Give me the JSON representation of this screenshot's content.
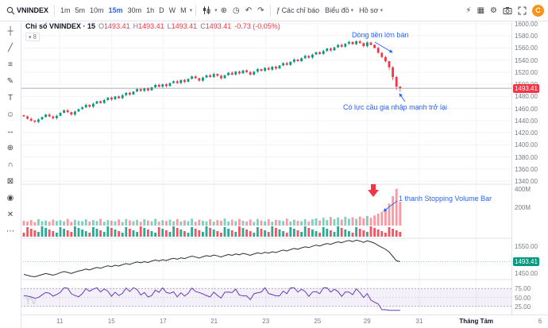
{
  "toolbar": {
    "symbol": "VNINDEX",
    "timeframes": [
      "1m",
      "5m",
      "10m",
      "15m",
      "30m",
      "1h",
      "D",
      "W",
      "M"
    ],
    "active_timeframe": "15m",
    "indicators_label": "Các chỉ báo",
    "layout_label": "Biểu đồ",
    "profile_label": "Hồ sơ",
    "logo_letter": "C"
  },
  "icons": {
    "chevron_down": "▾",
    "compare": "⊕",
    "alert_clock": "◷",
    "undo": "↶",
    "redo": "↷",
    "fx": "ƒ",
    "lightning": "⚡",
    "layout_grid": "▦",
    "gear": "⚙"
  },
  "sidebar": {
    "tools": [
      {
        "name": "crosshair",
        "glyph": "┼"
      },
      {
        "name": "trendline",
        "glyph": "╱"
      },
      {
        "name": "fib-retracement",
        "glyph": "≡"
      },
      {
        "name": "brush",
        "glyph": "✎"
      },
      {
        "name": "text-tool",
        "glyph": "T"
      },
      {
        "name": "emoji",
        "glyph": "☺"
      },
      {
        "name": "measure",
        "glyph": "↔"
      },
      {
        "name": "zoom",
        "glyph": "⊕"
      },
      {
        "name": "magnet",
        "glyph": "∩"
      },
      {
        "name": "lock",
        "glyph": "⊠"
      },
      {
        "name": "eye",
        "glyph": "◉"
      },
      {
        "name": "trash",
        "glyph": "✕"
      },
      {
        "name": "more",
        "glyph": "⋯"
      }
    ]
  },
  "legend": {
    "title": "Chỉ số VNINDEX · 15",
    "o_label": "O",
    "open": "1493.41",
    "h_label": "H",
    "high": "1493.41",
    "l_label": "L",
    "low": "1493.41",
    "c_label": "C",
    "close": "1493.41",
    "change": "-0.73 (-0.05%)",
    "collapsed_count": "8"
  },
  "annotations": {
    "sell": "Dòng tiền lớn bán",
    "buy": "Có lực cầu gia nhập mạnh trở lại",
    "stopping_volume": "1 thanh Stopping Volume Bar"
  },
  "axis": {
    "pane1_ticks": [
      "1600.00",
      "1580.00",
      "1560.00",
      "1540.00",
      "1520.00",
      "1500.00",
      "1480.00",
      "1460.00",
      "1440.00",
      "1420.00",
      "1400.00",
      "1380.00",
      "1360.00",
      "1340.00"
    ],
    "price_badge": "1493.41",
    "volume_ticks": [
      {
        "label": "400M",
        "value": 400
      },
      {
        "label": "200M",
        "value": 200
      }
    ],
    "pane3_ticks": [
      {
        "label": "1550.00",
        "value": 1550
      },
      {
        "label": "1450.00",
        "value": 1450
      }
    ],
    "line_badge": "1493.41",
    "osc_ticks": [
      {
        "label": "75.00",
        "value": 75
      },
      {
        "label": "50.00",
        "value": 50
      },
      {
        "label": "25.00",
        "value": 25
      }
    ],
    "time_labels": [
      {
        "label": "11",
        "pos": 0.074
      },
      {
        "label": "15",
        "pos": 0.172
      },
      {
        "label": "17",
        "pos": 0.27
      },
      {
        "label": "21",
        "pos": 0.367
      },
      {
        "label": "23",
        "pos": 0.465
      },
      {
        "label": "25",
        "pos": 0.563
      },
      {
        "label": "29",
        "pos": 0.657
      },
      {
        "label": "31",
        "pos": 0.756
      },
      {
        "label": "Tháng Tám",
        "pos": 0.864,
        "strong": true
      },
      {
        "label": "6",
        "pos": 0.985
      }
    ]
  },
  "colors": {
    "up": "#089981",
    "down": "#f23645",
    "accent": "#2962ff",
    "osc": "#673ab7",
    "axis_text": "#787b86",
    "grid": "#f0f3fa",
    "separator": "#e0e3eb",
    "line_series": "#2a2e39"
  },
  "watermark": "TV",
  "chart_data": [
    {
      "type": "candlestick",
      "name": "VNINDEX 15m",
      "ylim": [
        1335,
        1605
      ],
      "last_price": 1493.41,
      "closes": [
        1447,
        1443,
        1440,
        1438,
        1442,
        1446,
        1450,
        1447,
        1444,
        1448,
        1453,
        1457,
        1454,
        1450,
        1455,
        1459,
        1462,
        1466,
        1463,
        1468,
        1472,
        1469,
        1474,
        1478,
        1475,
        1480,
        1477,
        1482,
        1486,
        1483,
        1488,
        1492,
        1489,
        1493,
        1490,
        1495,
        1499,
        1496,
        1500,
        1497,
        1502,
        1505,
        1502,
        1507,
        1504,
        1509,
        1513,
        1510,
        1506,
        1511,
        1515,
        1512,
        1517,
        1514,
        1510,
        1515,
        1519,
        1516,
        1521,
        1518,
        1523,
        1520,
        1516,
        1521,
        1525,
        1522,
        1527,
        1524,
        1529,
        1526,
        1531,
        1535,
        1532,
        1537,
        1541,
        1538,
        1543,
        1547,
        1544,
        1549,
        1553,
        1550,
        1555,
        1559,
        1556,
        1561,
        1565,
        1562,
        1567,
        1570,
        1566,
        1571,
        1568,
        1563,
        1569,
        1565,
        1560,
        1552,
        1545,
        1538,
        1528,
        1512,
        1496,
        1493.41
      ]
    },
    {
      "type": "bar",
      "name": "volume",
      "unit": "M",
      "ylim": [
        0,
        450
      ],
      "values": [
        52,
        44,
        61,
        38,
        70,
        48,
        55,
        42,
        65,
        50,
        58,
        46,
        72,
        40,
        63,
        51,
        47,
        68,
        44,
        59,
        49,
        74,
        42,
        60,
        53,
        45,
        67,
        39,
        71,
        56,
        48,
        62,
        41,
        69,
        54,
        46,
        73,
        43,
        58,
        50,
        64,
        47,
        70,
        45,
        57,
        49,
        75,
        41,
        62,
        52,
        46,
        68,
        43,
        59,
        51,
        77,
        44,
        63,
        48,
        71,
        53,
        45,
        66,
        40,
        72,
        55,
        47,
        69,
        42,
        61,
        58,
        49,
        76,
        44,
        64,
        52,
        47,
        70,
        45,
        67,
        78,
        55,
        85,
        60,
        92,
        70,
        88,
        65,
        95,
        75,
        90,
        72,
        98,
        80,
        105,
        85,
        110,
        130,
        150,
        180,
        240,
        320,
        400,
        260
      ]
    },
    {
      "type": "bar",
      "name": "micro-histogram-strip"
    },
    {
      "type": "line",
      "name": "index-line",
      "ylim": [
        1428,
        1578
      ],
      "last_price": 1493.41
    },
    {
      "type": "line",
      "name": "oscillator",
      "ylim": [
        0,
        100
      ],
      "bands": [
        25,
        50,
        75
      ]
    }
  ]
}
